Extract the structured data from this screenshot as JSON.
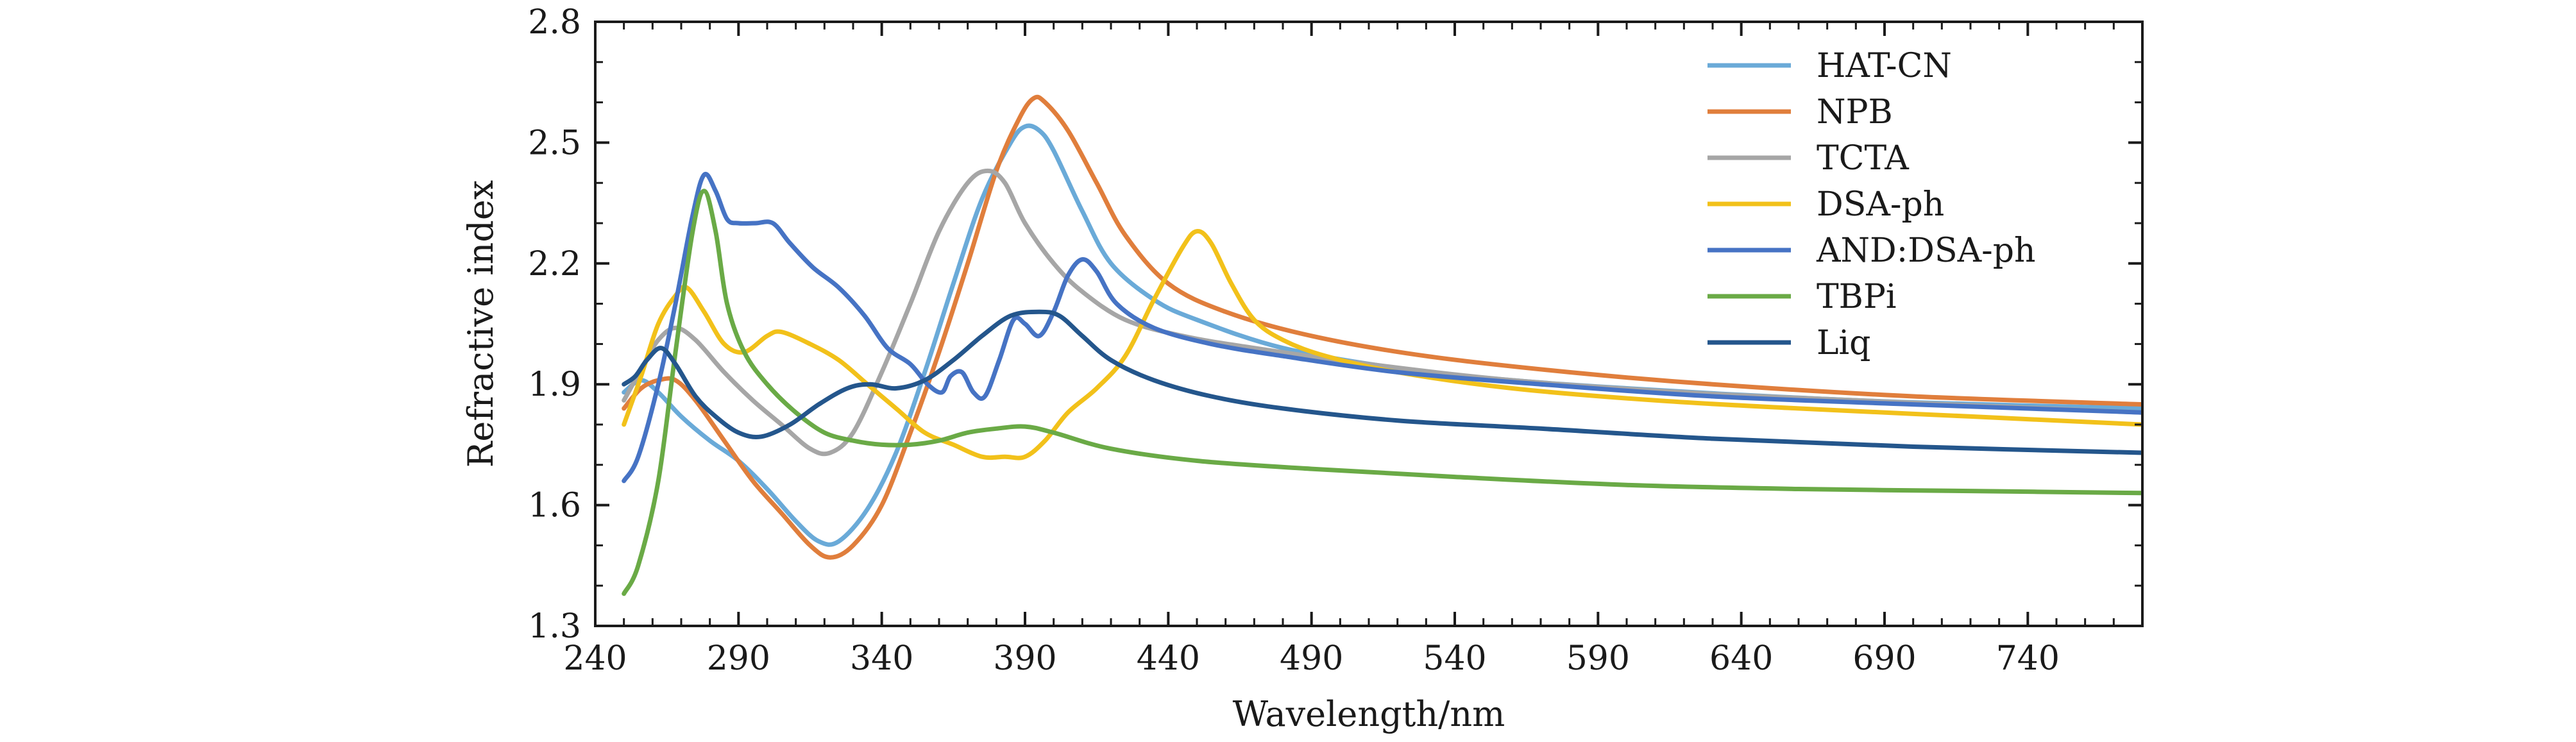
{
  "chart_data": {
    "type": "line",
    "xlabel": "Wavelength/nm",
    "ylabel": "Refractive index",
    "xlim": [
      240,
      780
    ],
    "ylim": [
      1.3,
      2.8
    ],
    "xticks": [
      240,
      290,
      340,
      390,
      440,
      490,
      540,
      590,
      640,
      690,
      740
    ],
    "xtick_labels": [
      "240",
      "290",
      "340",
      "390",
      "440",
      "490",
      "540",
      "590",
      "640",
      "690",
      "740"
    ],
    "yticks": [
      1.3,
      1.6,
      1.9,
      2.2,
      2.5,
      2.8
    ],
    "ytick_labels": [
      "1.3",
      "1.6",
      "1.9",
      "2.2",
      "2.5",
      "2.8"
    ],
    "grid": false,
    "legend_position": "top-right",
    "series": [
      {
        "name": "HAT-CN",
        "color": "#6aaad8",
        "points": [
          [
            250,
            1.88
          ],
          [
            256,
            1.91
          ],
          [
            262,
            1.88
          ],
          [
            270,
            1.82
          ],
          [
            280,
            1.76
          ],
          [
            290,
            1.71
          ],
          [
            300,
            1.64
          ],
          [
            310,
            1.56
          ],
          [
            318,
            1.51
          ],
          [
            325,
            1.51
          ],
          [
            335,
            1.59
          ],
          [
            345,
            1.73
          ],
          [
            355,
            1.93
          ],
          [
            365,
            2.15
          ],
          [
            375,
            2.36
          ],
          [
            385,
            2.5
          ],
          [
            390,
            2.54
          ],
          [
            395,
            2.53
          ],
          [
            400,
            2.48
          ],
          [
            410,
            2.33
          ],
          [
            420,
            2.2
          ],
          [
            435,
            2.11
          ],
          [
            450,
            2.06
          ],
          [
            480,
            1.99
          ],
          [
            520,
            1.94
          ],
          [
            560,
            1.91
          ],
          [
            600,
            1.89
          ],
          [
            650,
            1.87
          ],
          [
            700,
            1.855
          ],
          [
            780,
            1.84
          ]
        ]
      },
      {
        "name": "NPB",
        "color": "#e07e3c",
        "points": [
          [
            250,
            1.84
          ],
          [
            256,
            1.89
          ],
          [
            262,
            1.91
          ],
          [
            268,
            1.91
          ],
          [
            275,
            1.86
          ],
          [
            285,
            1.76
          ],
          [
            295,
            1.66
          ],
          [
            305,
            1.58
          ],
          [
            315,
            1.5
          ],
          [
            322,
            1.47
          ],
          [
            330,
            1.5
          ],
          [
            340,
            1.6
          ],
          [
            350,
            1.78
          ],
          [
            360,
            1.98
          ],
          [
            370,
            2.2
          ],
          [
            380,
            2.43
          ],
          [
            388,
            2.56
          ],
          [
            393,
            2.61
          ],
          [
            397,
            2.6
          ],
          [
            405,
            2.53
          ],
          [
            415,
            2.4
          ],
          [
            425,
            2.27
          ],
          [
            440,
            2.15
          ],
          [
            460,
            2.08
          ],
          [
            490,
            2.02
          ],
          [
            530,
            1.97
          ],
          [
            580,
            1.93
          ],
          [
            630,
            1.9
          ],
          [
            700,
            1.87
          ],
          [
            780,
            1.85
          ]
        ]
      },
      {
        "name": "TCTA",
        "color": "#a6a6a6",
        "points": [
          [
            250,
            1.86
          ],
          [
            257,
            1.95
          ],
          [
            262,
            2.01
          ],
          [
            268,
            2.04
          ],
          [
            275,
            2.01
          ],
          [
            285,
            1.93
          ],
          [
            295,
            1.86
          ],
          [
            305,
            1.8
          ],
          [
            315,
            1.74
          ],
          [
            322,
            1.73
          ],
          [
            330,
            1.78
          ],
          [
            340,
            1.93
          ],
          [
            350,
            2.1
          ],
          [
            360,
            2.28
          ],
          [
            370,
            2.4
          ],
          [
            377,
            2.43
          ],
          [
            383,
            2.4
          ],
          [
            390,
            2.3
          ],
          [
            400,
            2.2
          ],
          [
            410,
            2.13
          ],
          [
            425,
            2.06
          ],
          [
            445,
            2.02
          ],
          [
            470,
            1.99
          ],
          [
            510,
            1.95
          ],
          [
            560,
            1.91
          ],
          [
            620,
            1.88
          ],
          [
            680,
            1.86
          ],
          [
            780,
            1.83
          ]
        ]
      },
      {
        "name": "DSA-ph",
        "color": "#f2c11a",
        "points": [
          [
            250,
            1.8
          ],
          [
            256,
            1.92
          ],
          [
            262,
            2.05
          ],
          [
            268,
            2.12
          ],
          [
            272,
            2.14
          ],
          [
            278,
            2.08
          ],
          [
            285,
            2.0
          ],
          [
            292,
            1.98
          ],
          [
            300,
            2.02
          ],
          [
            305,
            2.03
          ],
          [
            315,
            2.0
          ],
          [
            325,
            1.96
          ],
          [
            335,
            1.9
          ],
          [
            345,
            1.84
          ],
          [
            355,
            1.78
          ],
          [
            365,
            1.75
          ],
          [
            375,
            1.72
          ],
          [
            383,
            1.72
          ],
          [
            390,
            1.72
          ],
          [
            397,
            1.76
          ],
          [
            405,
            1.83
          ],
          [
            415,
            1.89
          ],
          [
            425,
            1.97
          ],
          [
            435,
            2.11
          ],
          [
            445,
            2.24
          ],
          [
            450,
            2.28
          ],
          [
            455,
            2.25
          ],
          [
            462,
            2.15
          ],
          [
            470,
            2.06
          ],
          [
            480,
            2.01
          ],
          [
            495,
            1.97
          ],
          [
            520,
            1.93
          ],
          [
            560,
            1.89
          ],
          [
            610,
            1.86
          ],
          [
            660,
            1.84
          ],
          [
            720,
            1.82
          ],
          [
            780,
            1.8
          ]
        ]
      },
      {
        "name": "AND:DSA-ph",
        "color": "#4673c4",
        "points": [
          [
            250,
            1.66
          ],
          [
            255,
            1.72
          ],
          [
            262,
            1.9
          ],
          [
            268,
            2.1
          ],
          [
            274,
            2.32
          ],
          [
            278,
            2.42
          ],
          [
            282,
            2.38
          ],
          [
            286,
            2.31
          ],
          [
            290,
            2.3
          ],
          [
            296,
            2.3
          ],
          [
            302,
            2.3
          ],
          [
            308,
            2.25
          ],
          [
            316,
            2.19
          ],
          [
            325,
            2.14
          ],
          [
            334,
            2.07
          ],
          [
            342,
            1.99
          ],
          [
            350,
            1.95
          ],
          [
            356,
            1.9
          ],
          [
            361,
            1.88
          ],
          [
            364,
            1.92
          ],
          [
            368,
            1.93
          ],
          [
            372,
            1.88
          ],
          [
            376,
            1.87
          ],
          [
            381,
            1.96
          ],
          [
            386,
            2.06
          ],
          [
            390,
            2.05
          ],
          [
            395,
            2.02
          ],
          [
            400,
            2.08
          ],
          [
            405,
            2.17
          ],
          [
            410,
            2.21
          ],
          [
            415,
            2.18
          ],
          [
            422,
            2.1
          ],
          [
            435,
            2.04
          ],
          [
            455,
            2.0
          ],
          [
            480,
            1.97
          ],
          [
            520,
            1.93
          ],
          [
            570,
            1.9
          ],
          [
            630,
            1.87
          ],
          [
            700,
            1.85
          ],
          [
            780,
            1.83
          ]
        ]
      },
      {
        "name": "TBPi",
        "color": "#6aaa46",
        "points": [
          [
            250,
            1.38
          ],
          [
            255,
            1.45
          ],
          [
            262,
            1.66
          ],
          [
            268,
            1.98
          ],
          [
            274,
            2.28
          ],
          [
            278,
            2.38
          ],
          [
            282,
            2.28
          ],
          [
            286,
            2.1
          ],
          [
            292,
            1.98
          ],
          [
            300,
            1.9
          ],
          [
            310,
            1.83
          ],
          [
            320,
            1.78
          ],
          [
            330,
            1.76
          ],
          [
            340,
            1.75
          ],
          [
            350,
            1.75
          ],
          [
            360,
            1.76
          ],
          [
            370,
            1.78
          ],
          [
            380,
            1.79
          ],
          [
            390,
            1.795
          ],
          [
            400,
            1.78
          ],
          [
            420,
            1.74
          ],
          [
            450,
            1.71
          ],
          [
            490,
            1.69
          ],
          [
            540,
            1.67
          ],
          [
            600,
            1.65
          ],
          [
            660,
            1.64
          ],
          [
            720,
            1.635
          ],
          [
            780,
            1.63
          ]
        ]
      },
      {
        "name": "Liq",
        "color": "#24568c",
        "points": [
          [
            250,
            1.9
          ],
          [
            254,
            1.92
          ],
          [
            258,
            1.96
          ],
          [
            263,
            1.99
          ],
          [
            268,
            1.95
          ],
          [
            275,
            1.87
          ],
          [
            282,
            1.82
          ],
          [
            290,
            1.78
          ],
          [
            298,
            1.77
          ],
          [
            308,
            1.8
          ],
          [
            318,
            1.85
          ],
          [
            328,
            1.89
          ],
          [
            336,
            1.9
          ],
          [
            345,
            1.89
          ],
          [
            355,
            1.91
          ],
          [
            365,
            1.96
          ],
          [
            375,
            2.02
          ],
          [
            385,
            2.07
          ],
          [
            395,
            2.08
          ],
          [
            402,
            2.07
          ],
          [
            410,
            2.02
          ],
          [
            420,
            1.96
          ],
          [
            435,
            1.91
          ],
          [
            455,
            1.87
          ],
          [
            480,
            1.84
          ],
          [
            520,
            1.81
          ],
          [
            570,
            1.79
          ],
          [
            630,
            1.765
          ],
          [
            700,
            1.745
          ],
          [
            780,
            1.73
          ]
        ]
      }
    ]
  }
}
